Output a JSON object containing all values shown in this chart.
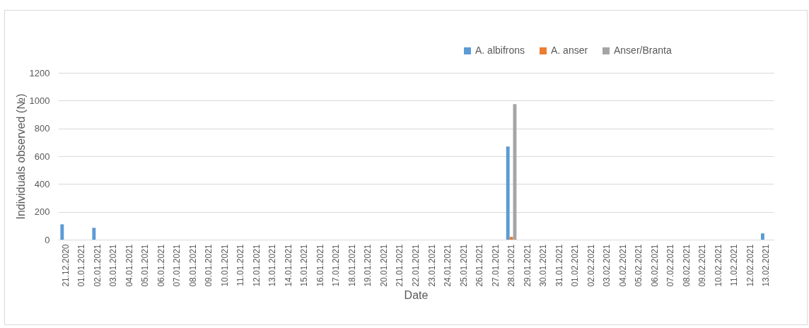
{
  "chart_data": {
    "type": "bar",
    "xlabel": "Date",
    "ylabel": "Individuals observed (№)",
    "categories": [
      "21.12.2020",
      "01.01.2021",
      "02.01.2021",
      "03.01.2021",
      "04.01.2021",
      "05.01.2021",
      "06.01.2021",
      "07.01.2021",
      "08.01.2021",
      "09.01.2021",
      "10.01.2021",
      "11.01.2021",
      "12.01.2021",
      "13.01.2021",
      "14.01.2021",
      "15.01.2021",
      "16.01.2021",
      "17.01.2021",
      "18.01.2021",
      "19.01.2021",
      "20.01.2021",
      "21.01.2021",
      "22.01.2021",
      "23.01.2021",
      "24.01.2021",
      "25.01.2021",
      "26.01.2021",
      "27.01.2021",
      "28.01.2021",
      "29.01.2021",
      "30.01.2021",
      "31.01.2021",
      "01.02.2021",
      "02.02.2021",
      "03.02.2021",
      "04.02.2021",
      "05.02.2021",
      "06.02.2021",
      "07.02.2021",
      "08.02.2021",
      "09.02.2021",
      "10.02.2021",
      "11.02.2021",
      "12.02.2021",
      "13.02.2021"
    ],
    "series": [
      {
        "name": "A. albifrons",
        "color": "#5b9bd5",
        "values": [
          110,
          null,
          85,
          null,
          null,
          null,
          null,
          null,
          null,
          null,
          null,
          null,
          null,
          null,
          null,
          null,
          null,
          null,
          null,
          null,
          null,
          null,
          null,
          null,
          null,
          null,
          null,
          null,
          670,
          null,
          null,
          null,
          null,
          null,
          null,
          null,
          null,
          null,
          null,
          null,
          null,
          null,
          null,
          null,
          45
        ]
      },
      {
        "name": "A. anser",
        "color": "#ed7d31",
        "values": [
          null,
          null,
          null,
          null,
          null,
          null,
          null,
          null,
          null,
          null,
          null,
          null,
          null,
          null,
          null,
          null,
          null,
          null,
          null,
          null,
          null,
          null,
          null,
          null,
          null,
          null,
          null,
          null,
          20,
          null,
          null,
          null,
          null,
          null,
          null,
          null,
          null,
          null,
          null,
          null,
          null,
          null,
          null,
          null,
          null
        ]
      },
      {
        "name": "Anser/Branta",
        "color": "#a5a5a5",
        "values": [
          null,
          null,
          null,
          null,
          null,
          null,
          null,
          null,
          null,
          null,
          null,
          null,
          null,
          null,
          null,
          null,
          null,
          null,
          null,
          null,
          null,
          null,
          null,
          null,
          null,
          null,
          null,
          null,
          975,
          null,
          null,
          null,
          null,
          null,
          null,
          null,
          null,
          null,
          null,
          null,
          null,
          null,
          null,
          null,
          null
        ]
      }
    ],
    "ylim": [
      0,
      1200
    ],
    "yticks": [
      0,
      200,
      400,
      600,
      800,
      1000,
      1200
    ],
    "grid": "y",
    "legend": "top right"
  }
}
